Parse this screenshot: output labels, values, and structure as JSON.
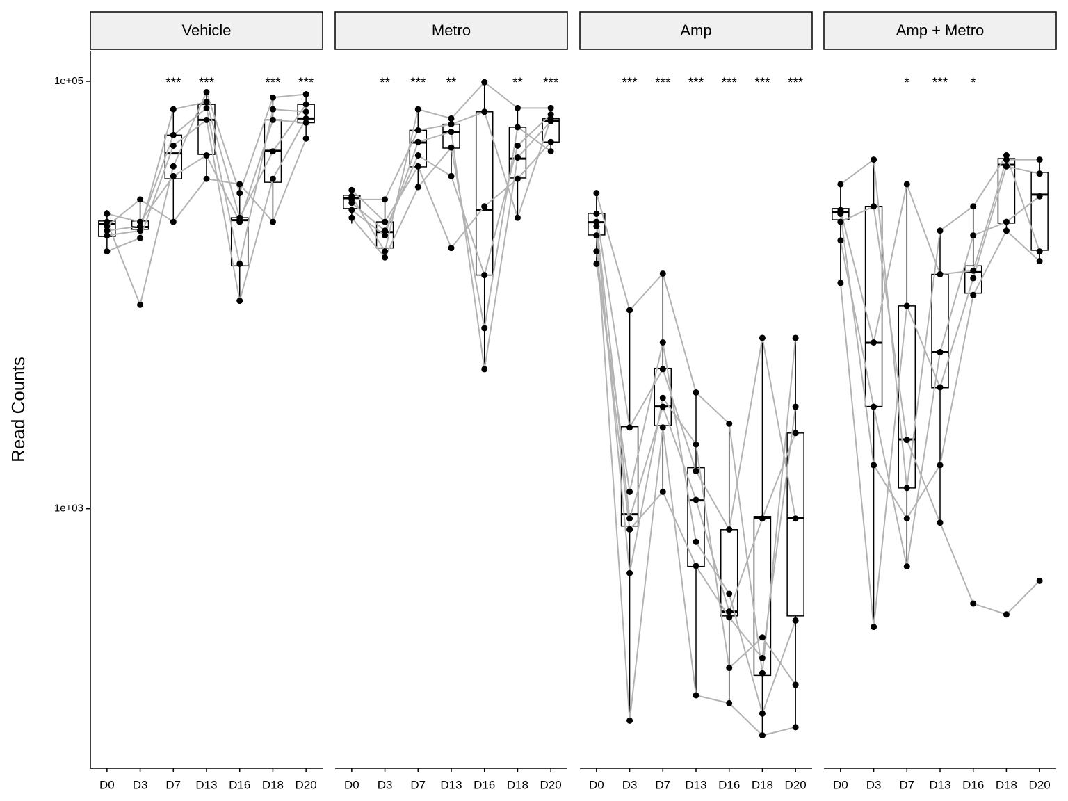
{
  "chart_data": [
    {
      "type": "boxplot",
      "title": "Vehicle",
      "ylabel": "Read Counts",
      "log_y": true,
      "ylim": [
        61,
        139000
      ],
      "yticks": [
        {
          "value": 1000,
          "label": "1e+03"
        },
        {
          "value": 100000,
          "label": "1e+05"
        }
      ],
      "categories": [
        "D0",
        "D3",
        "D7",
        "D13",
        "D16",
        "D18",
        "D20"
      ],
      "significance": [
        null,
        null,
        "***",
        "***",
        null,
        "***",
        "***"
      ],
      "boxes": [
        {
          "low": 15800,
          "q1": 18800,
          "median": 21600,
          "q3": 22200,
          "high": 25000
        },
        {
          "low": 18500,
          "q1": 20300,
          "median": 20800,
          "q3": 22200,
          "high": 28000
        },
        {
          "low": 21600,
          "q1": 35000,
          "median": 46000,
          "q3": 56000,
          "high": 74000
        },
        {
          "low": 35000,
          "q1": 45500,
          "median": 66000,
          "q3": 78000,
          "high": 89000
        },
        {
          "low": 9400,
          "q1": 13700,
          "median": 22400,
          "q3": 23000,
          "high": 33000
        },
        {
          "low": 21900,
          "q1": 33700,
          "median": 47300,
          "q3": 66000,
          "high": 84000
        },
        {
          "low": 54000,
          "q1": 64000,
          "median": 67000,
          "q3": 78000,
          "high": 87000
        }
      ],
      "subjects": [
        [
          22000,
          9000,
          40000,
          89000,
          30000,
          84000,
          87000
        ],
        [
          19000,
          20000,
          74000,
          80000,
          23000,
          47000,
          78000
        ],
        [
          16000,
          18500,
          50000,
          66000,
          9400,
          35000,
          67000
        ],
        [
          24000,
          22000,
          36000,
          45000,
          22000,
          66000,
          64000
        ],
        [
          21000,
          28000,
          22000,
          35000,
          33000,
          22000,
          54000
        ],
        [
          20000,
          21000,
          56000,
          75000,
          14000,
          74000,
          72000
        ]
      ]
    },
    {
      "type": "boxplot",
      "title": "Metro",
      "categories": [
        "D0",
        "D3",
        "D7",
        "D13",
        "D16",
        "D18",
        "D20"
      ],
      "significance": [
        null,
        "**",
        "***",
        "**",
        null,
        "**",
        "***"
      ],
      "boxes": [
        {
          "low": 21600,
          "q1": 25400,
          "median": 28400,
          "q3": 29300,
          "high": 31300
        },
        {
          "low": 15000,
          "q1": 16600,
          "median": 19700,
          "q3": 22000,
          "high": 28400
        },
        {
          "low": 31800,
          "q1": 39800,
          "median": 51700,
          "q3": 59000,
          "high": 74000
        },
        {
          "low": 35900,
          "q1": 48700,
          "median": 57900,
          "q3": 63000,
          "high": 67000
        },
        {
          "low": 4500,
          "q1": 12400,
          "median": 24900,
          "q3": 72000,
          "high": 99000
        },
        {
          "low": 22700,
          "q1": 35300,
          "median": 43500,
          "q3": 61000,
          "high": 75000
        },
        {
          "low": 47000,
          "q1": 52000,
          "median": 65000,
          "q3": 66800,
          "high": 75000
        }
      ],
      "subjects": [
        [
          29000,
          16000,
          74000,
          67000,
          99000,
          75000,
          75000
        ],
        [
          25000,
          19000,
          52000,
          58000,
          4500,
          44000,
          65000
        ],
        [
          31000,
          22000,
          40000,
          16600,
          26000,
          35000,
          52000
        ],
        [
          28000,
          28000,
          59000,
          63000,
          72000,
          23000,
          67000
        ],
        [
          23000,
          15000,
          32000,
          49000,
          7000,
          61000,
          47000
        ],
        [
          27000,
          20000,
          45000,
          36000,
          12400,
          50000,
          70000
        ]
      ]
    },
    {
      "type": "boxplot",
      "title": "Amp",
      "categories": [
        "D0",
        "D3",
        "D7",
        "D13",
        "D16",
        "D18",
        "D20"
      ],
      "significance": [
        null,
        "***",
        "***",
        "***",
        "***",
        "***",
        "***"
      ],
      "boxes": [
        {
          "low": 13800,
          "q1": 19100,
          "median": 21900,
          "q3": 24100,
          "high": 30400
        },
        {
          "low": 102,
          "q1": 829,
          "median": 942,
          "q3": 2420,
          "high": 8500
        },
        {
          "low": 1170,
          "q1": 2450,
          "median": 3010,
          "q3": 4540,
          "high": 12600
        },
        {
          "low": 134,
          "q1": 537,
          "median": 1094,
          "q3": 1556,
          "high": 3490
        },
        {
          "low": 123,
          "q1": 315,
          "median": 330,
          "q3": 798,
          "high": 2570
        },
        {
          "low": 87,
          "q1": 166,
          "median": 906,
          "q3": 920,
          "high": 6270
        },
        {
          "low": 95,
          "q1": 315,
          "median": 908,
          "q3": 2260,
          "high": 6270
        }
      ],
      "subjects": [
        [
          30000,
          8500,
          12600,
          3500,
          2500,
          170,
          6300
        ],
        [
          24000,
          2400,
          4500,
          1500,
          800,
          6300,
          900
        ],
        [
          22000,
          900,
          3000,
          1100,
          330,
          900,
          2260
        ],
        [
          19000,
          102,
          2400,
          134,
          123,
          87,
          95
        ],
        [
          16000,
          800,
          1200,
          540,
          310,
          200,
          3000
        ],
        [
          14000,
          1200,
          6000,
          700,
          400,
          110,
          300
        ],
        [
          21000,
          500,
          3300,
          2000,
          180,
          250,
          150
        ]
      ]
    },
    {
      "type": "boxplot",
      "title": "Amp + Metro",
      "categories": [
        "D0",
        "D3",
        "D7",
        "D13",
        "D16",
        "D18",
        "D20"
      ],
      "significance": [
        null,
        null,
        "*",
        "***",
        "*",
        null,
        null
      ],
      "boxes": [
        {
          "low": 11400,
          "q1": 22500,
          "median": 24500,
          "q3": 25400,
          "high": 33000
        },
        {
          "low": 280,
          "q1": 3010,
          "median": 5980,
          "q3": 26000,
          "high": 43000
        },
        {
          "low": 537,
          "q1": 1250,
          "median": 2110,
          "q3": 8900,
          "high": 33000
        },
        {
          "low": 861,
          "q1": 3680,
          "median": 5400,
          "q3": 12500,
          "high": 20000
        },
        {
          "low": 9900,
          "q1": 10200,
          "median": 12800,
          "q3": 13700,
          "high": 26400
        },
        {
          "low": 19400,
          "q1": 21700,
          "median": 40700,
          "q3": 43500,
          "high": 45000
        },
        {
          "low": 14400,
          "q1": 16200,
          "median": 29500,
          "q3": 37500,
          "high": 43000
        }
      ],
      "subjects": [
        [
          33000,
          43000,
          1250,
          20000,
          26000,
          45000,
          16000
        ],
        [
          25000,
          6000,
          33000,
          12500,
          13000,
          43000,
          43000
        ],
        [
          11400,
          280,
          8900,
          3700,
          12000,
          40000,
          37000
        ],
        [
          22000,
          26000,
          2100,
          861,
          360,
          320,
          460
        ],
        [
          18000,
          3000,
          537,
          5400,
          19000,
          22000,
          29000
        ],
        [
          24000,
          1600,
          900,
          1600,
          10000,
          20000,
          14400
        ]
      ]
    }
  ]
}
